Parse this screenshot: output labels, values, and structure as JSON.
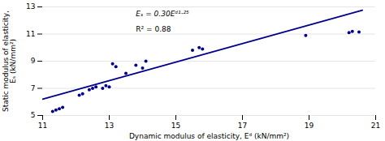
{
  "chart_data": {
    "type": "scatter",
    "xlabel": "Dynamic modulus of elasticity, Eᵈ (kN/mm²)",
    "ylabel": "Static modulus of elasticity,\nEₛ (kN/mm²)",
    "annotations": [
      {
        "text": "Eₛ = 0.30Eᵈ¹·²⁵"
      },
      {
        "text": "R² = 0.88"
      }
    ],
    "series": [
      {
        "type": "scatter",
        "color": "#00008B",
        "marker": "circle",
        "x": [
          11.3,
          11.4,
          11.5,
          11.6,
          12.1,
          12.2,
          12.4,
          12.5,
          12.6,
          12.8,
          12.9,
          13.0,
          13.1,
          13.2,
          13.5,
          13.8,
          14.0,
          14.1,
          15.5,
          15.7,
          15.8,
          18.9,
          20.2,
          20.3,
          20.5
        ],
        "values": [
          5.3,
          5.4,
          5.5,
          5.6,
          6.5,
          6.6,
          6.9,
          7.0,
          7.1,
          7.0,
          7.2,
          7.1,
          8.8,
          8.6,
          8.1,
          8.7,
          8.5,
          9.0,
          9.8,
          10.0,
          9.9,
          10.9,
          11.1,
          11.2,
          11.15
        ]
      },
      {
        "type": "line",
        "color": "#00008B",
        "line_style": "solid",
        "x": [
          11.0,
          20.6
        ],
        "values": [
          6.2,
          12.75
        ]
      }
    ],
    "xlim": [
      11,
      21
    ],
    "ylim": [
      5,
      13
    ],
    "xticks": [
      11,
      13,
      15,
      17,
      19,
      21
    ],
    "yticks": [
      5,
      7,
      9,
      11,
      13
    ],
    "grid": "y"
  }
}
